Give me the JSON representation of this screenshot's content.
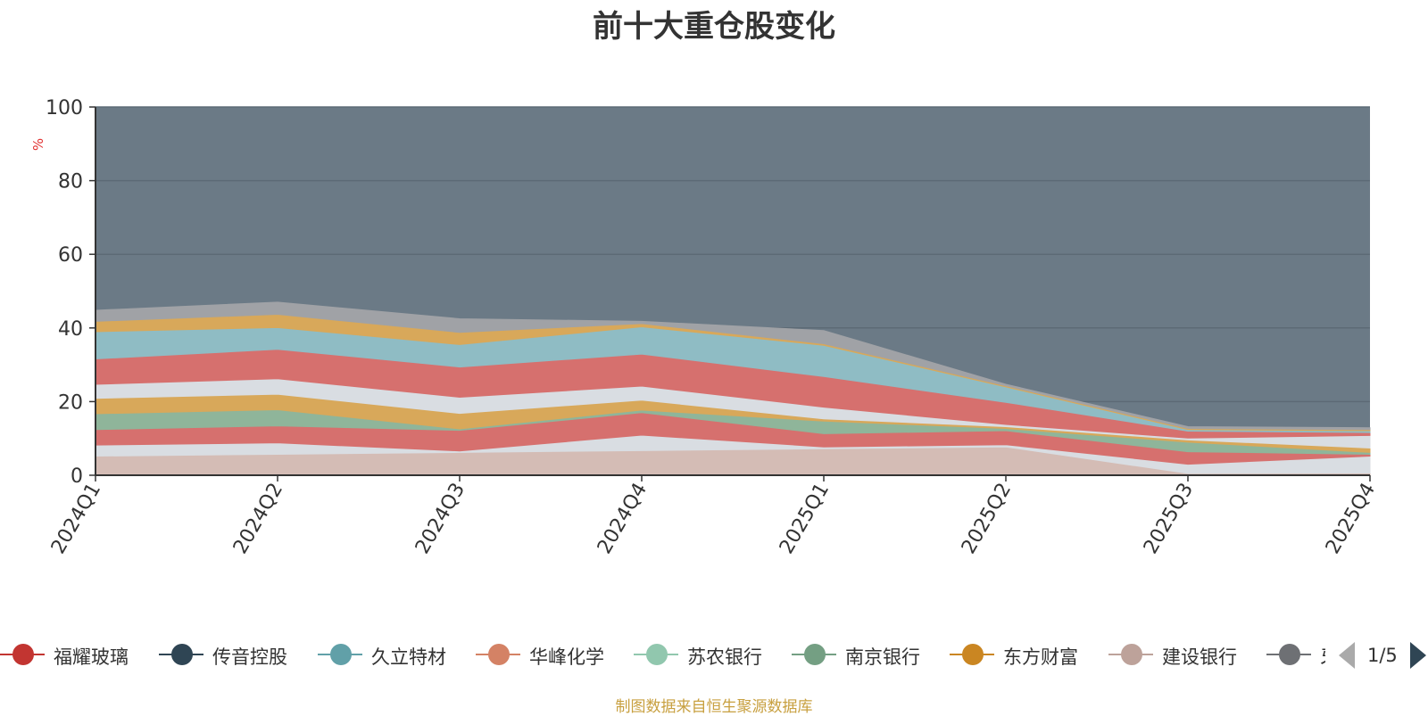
{
  "title": "前十大重仓股变化",
  "source_note": "制图数据来自恒生聚源数据库",
  "pager": {
    "text": "1/5"
  },
  "legend": [
    {
      "label": "福耀玻璃",
      "color": "#c23531"
    },
    {
      "label": "传音控股",
      "color": "#2f4554"
    },
    {
      "label": "久立特材",
      "color": "#61a0a8"
    },
    {
      "label": "华峰化学",
      "color": "#d48265"
    },
    {
      "label": "苏农银行",
      "color": "#91c7ae"
    },
    {
      "label": "南京银行",
      "color": "#749f83"
    },
    {
      "label": "东方财富",
      "color": "#ca8622"
    },
    {
      "label": "建设银行",
      "color": "#bda29a"
    },
    {
      "label": "牙",
      "color": "#6e7074"
    }
  ],
  "chart_data": {
    "type": "area",
    "stacked": true,
    "title": "前十大重仓股变化",
    "ylabel": "%",
    "ylim": [
      0,
      100
    ],
    "yticks": [
      0,
      20,
      40,
      60,
      80,
      100
    ],
    "categories": [
      "2024Q1",
      "2024Q2",
      "2024Q3",
      "2024Q4",
      "2025Q1",
      "2025Q2",
      "2025Q3",
      "2025Q4"
    ],
    "plot_background": "#6b7a86",
    "bands": [
      {
        "color": "#d4bcb5",
        "values": [
          5.2,
          5.7,
          6.2,
          6.7,
          7.2,
          7.7,
          0.5,
          0.6
        ]
      },
      {
        "color": "#d9dde2",
        "values": [
          3.0,
          3.1,
          0.4,
          4.2,
          0.5,
          0.6,
          2.5,
          4.6
        ]
      },
      {
        "color": "#d6706e",
        "values": [
          4.2,
          4.6,
          5.6,
          6.1,
          3.6,
          3.8,
          3.4,
          0.5
        ]
      },
      {
        "color": "#8fb59a",
        "values": [
          4.3,
          4.4,
          0.4,
          0.7,
          3.4,
          0.6,
          2.6,
          0.5
        ]
      },
      {
        "color": "#d8a85a",
        "values": [
          4.2,
          4.2,
          4.2,
          2.7,
          0.6,
          0.5,
          0.6,
          1.2
        ]
      },
      {
        "color": "#d9dde2",
        "values": [
          3.8,
          4.2,
          4.4,
          3.8,
          3.2,
          0.6,
          0.5,
          3.4
        ]
      },
      {
        "color": "#d6706e",
        "values": [
          6.9,
          8.0,
          8.2,
          8.7,
          8.3,
          6.0,
          1.9,
          0.8
        ]
      },
      {
        "color": "#8fbcc4",
        "values": [
          7.4,
          5.9,
          6.1,
          7.4,
          8.5,
          4.2,
          0.4,
          0.5
        ]
      },
      {
        "color": "#d8a85a",
        "values": [
          2.8,
          3.6,
          3.3,
          0.9,
          0.4,
          0.3,
          0.3,
          0.3
        ]
      },
      {
        "color": "#a0a2a6",
        "values": [
          3.0,
          3.3,
          3.7,
          0.6,
          3.6,
          0.4,
          0.5,
          0.5
        ]
      }
    ]
  }
}
